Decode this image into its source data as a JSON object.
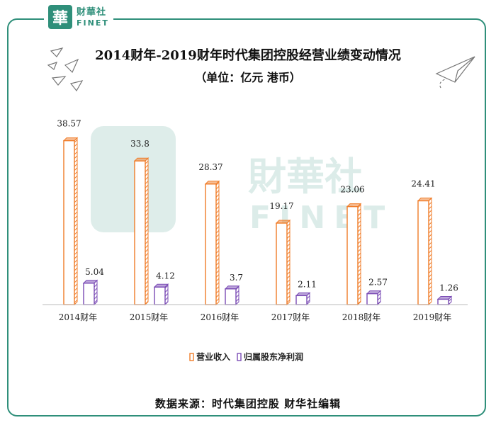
{
  "header": {
    "logo_mark": "華",
    "logo_cn": "财華社",
    "logo_en": "FINET"
  },
  "title": {
    "line1": "2014财年-2019财年时代集团控股经营业绩变动情况",
    "line2": "（单位：亿元 港币）"
  },
  "watermark": {
    "cn": "財華社",
    "en": "FINET"
  },
  "footer": {
    "source": "数据来源：时代集团控股   财华社编辑"
  },
  "colors": {
    "frame": "#2f8f7a",
    "revenue": "#f07c28",
    "profit": "#7a4bb5"
  },
  "chart_data": {
    "type": "bar",
    "categories": [
      "2014财年",
      "2015财年",
      "2016财年",
      "2017财年",
      "2018财年",
      "2019财年"
    ],
    "series": [
      {
        "name": "营业收入",
        "values": [
          38.57,
          33.8,
          28.37,
          19.17,
          23.06,
          24.41
        ],
        "color": "#f07c28"
      },
      {
        "name": "归属股东净利润",
        "values": [
          5.04,
          4.12,
          3.7,
          2.11,
          2.57,
          1.26
        ],
        "color": "#7a4bb5"
      }
    ],
    "value_labels": [
      [
        "38.57",
        "33.8",
        "28.37",
        "19.17",
        "23.06",
        "24.41"
      ],
      [
        "5.04",
        "4.12",
        "3.7",
        "2.11",
        "2.57",
        "1.26"
      ]
    ],
    "ylim": [
      0,
      40
    ],
    "legend_position": "bottom"
  }
}
